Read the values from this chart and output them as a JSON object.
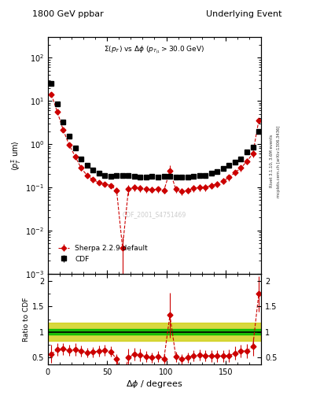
{
  "title_left": "1800 GeV ppbar",
  "title_right": "Underlying Event",
  "inner_title": "$\\Sigma(p_\\mathrm{T})$ vs $\\Delta\\phi$ ($p_{T_{|1}} > 30.0$ GeV)",
  "xlabel": "$\\Delta\\phi$ / degrees",
  "ylabel_main": "$\\langle p_T^\\Sigma$ um$\\rangle$",
  "ylabel_ratio": "Ratio to CDF",
  "watermark": "CDF_2001_S4751469",
  "right_label_top": "Rivet 3.1.10, 3.6M events",
  "right_label_bot": "mcplots.cern.ch [arXiv:1306.3436]",
  "xlim": [
    0,
    180
  ],
  "ylim_main": [
    0.001,
    300
  ],
  "ylim_ratio": [
    0.35,
    2.15
  ],
  "cdf_x": [
    3,
    8,
    13,
    18,
    23,
    28,
    33,
    38,
    43,
    48,
    53,
    58,
    63,
    68,
    73,
    78,
    83,
    88,
    93,
    98,
    103,
    108,
    113,
    118,
    123,
    128,
    133,
    138,
    143,
    148,
    153,
    158,
    163,
    168,
    173,
    178
  ],
  "cdf_y": [
    25,
    8.5,
    3.2,
    1.5,
    0.8,
    0.45,
    0.32,
    0.25,
    0.21,
    0.19,
    0.18,
    0.185,
    0.19,
    0.185,
    0.18,
    0.175,
    0.175,
    0.18,
    0.175,
    0.18,
    0.18,
    0.175,
    0.175,
    0.175,
    0.18,
    0.185,
    0.19,
    0.21,
    0.23,
    0.27,
    0.32,
    0.38,
    0.45,
    0.65,
    0.85,
    2.0
  ],
  "cdf_yerr_lo": [
    2.0,
    0.8,
    0.3,
    0.15,
    0.08,
    0.05,
    0.03,
    0.025,
    0.02,
    0.018,
    0.017,
    0.018,
    0.018,
    0.017,
    0.017,
    0.016,
    0.016,
    0.017,
    0.016,
    0.017,
    0.017,
    0.016,
    0.016,
    0.016,
    0.017,
    0.018,
    0.018,
    0.02,
    0.022,
    0.025,
    0.03,
    0.04,
    0.05,
    0.07,
    0.09,
    0.25
  ],
  "cdf_yerr_hi": [
    2.0,
    0.8,
    0.3,
    0.15,
    0.08,
    0.05,
    0.03,
    0.025,
    0.02,
    0.018,
    0.017,
    0.018,
    0.018,
    0.017,
    0.017,
    0.016,
    0.016,
    0.017,
    0.016,
    0.017,
    0.017,
    0.016,
    0.016,
    0.016,
    0.017,
    0.018,
    0.018,
    0.02,
    0.022,
    0.025,
    0.03,
    0.04,
    0.05,
    0.07,
    0.09,
    0.25
  ],
  "sherpa_x": [
    3,
    8,
    13,
    18,
    23,
    28,
    33,
    38,
    43,
    48,
    53,
    58,
    63,
    68,
    73,
    78,
    83,
    88,
    93,
    98,
    103,
    108,
    113,
    118,
    123,
    128,
    133,
    138,
    143,
    148,
    153,
    158,
    163,
    168,
    173,
    178
  ],
  "sherpa_y": [
    14.0,
    5.5,
    2.1,
    0.95,
    0.52,
    0.28,
    0.19,
    0.15,
    0.13,
    0.12,
    0.11,
    0.085,
    0.004,
    0.09,
    0.1,
    0.095,
    0.09,
    0.088,
    0.09,
    0.085,
    0.24,
    0.09,
    0.08,
    0.085,
    0.095,
    0.1,
    0.1,
    0.11,
    0.12,
    0.14,
    0.17,
    0.22,
    0.28,
    0.4,
    0.6,
    3.5
  ],
  "sherpa_yerr_lo": [
    1.5,
    0.6,
    0.25,
    0.12,
    0.07,
    0.04,
    0.025,
    0.02,
    0.018,
    0.016,
    0.015,
    0.013,
    0.003,
    0.025,
    0.02,
    0.018,
    0.016,
    0.015,
    0.016,
    0.015,
    0.08,
    0.015,
    0.015,
    0.015,
    0.016,
    0.018,
    0.018,
    0.019,
    0.02,
    0.022,
    0.028,
    0.035,
    0.045,
    0.065,
    0.1,
    0.5
  ],
  "sherpa_yerr_hi": [
    1.5,
    0.6,
    0.25,
    0.12,
    0.07,
    0.04,
    0.025,
    0.02,
    0.018,
    0.016,
    0.015,
    0.013,
    0.003,
    0.025,
    0.02,
    0.018,
    0.016,
    0.015,
    0.016,
    0.015,
    0.08,
    0.015,
    0.015,
    0.015,
    0.016,
    0.018,
    0.018,
    0.019,
    0.02,
    0.022,
    0.028,
    0.035,
    0.045,
    0.065,
    0.1,
    0.5
  ],
  "ratio_x": [
    3,
    8,
    13,
    18,
    23,
    28,
    33,
    38,
    43,
    48,
    53,
    58,
    63,
    68,
    73,
    78,
    83,
    88,
    93,
    98,
    103,
    108,
    113,
    118,
    123,
    128,
    133,
    138,
    143,
    148,
    153,
    158,
    163,
    168,
    173,
    178
  ],
  "ratio_y": [
    0.56,
    0.65,
    0.66,
    0.63,
    0.65,
    0.62,
    0.59,
    0.6,
    0.62,
    0.63,
    0.61,
    0.46,
    0.021,
    0.49,
    0.56,
    0.54,
    0.51,
    0.49,
    0.51,
    0.47,
    1.33,
    0.51,
    0.46,
    0.49,
    0.53,
    0.54,
    0.53,
    0.52,
    0.52,
    0.52,
    0.53,
    0.58,
    0.62,
    0.62,
    0.71,
    1.75
  ],
  "ratio_yerr_lo": [
    0.18,
    0.12,
    0.11,
    0.11,
    0.12,
    0.11,
    0.1,
    0.1,
    0.11,
    0.11,
    0.1,
    0.1,
    0.018,
    0.18,
    0.13,
    0.12,
    0.11,
    0.1,
    0.11,
    0.1,
    0.45,
    0.1,
    0.1,
    0.1,
    0.11,
    0.11,
    0.11,
    0.11,
    0.11,
    0.11,
    0.12,
    0.13,
    0.13,
    0.14,
    0.18,
    0.35
  ],
  "ratio_yerr_hi": [
    0.18,
    0.12,
    0.11,
    0.11,
    0.12,
    0.11,
    0.1,
    0.1,
    0.11,
    0.11,
    0.1,
    0.1,
    0.018,
    0.18,
    0.13,
    0.12,
    0.11,
    0.1,
    0.11,
    0.1,
    0.45,
    0.1,
    0.1,
    0.1,
    0.11,
    0.11,
    0.11,
    0.11,
    0.11,
    0.11,
    0.12,
    0.13,
    0.13,
    0.14,
    0.18,
    0.35
  ],
  "green_band": [
    0.95,
    1.05
  ],
  "yellow_band": [
    0.82,
    1.18
  ],
  "bg_color": "#ffffff",
  "cdf_color": "#000000",
  "sherpa_color": "#cc0000",
  "green_color": "#00bb00",
  "yellow_color": "#cccc00",
  "gray_color": "#aaaaaa"
}
